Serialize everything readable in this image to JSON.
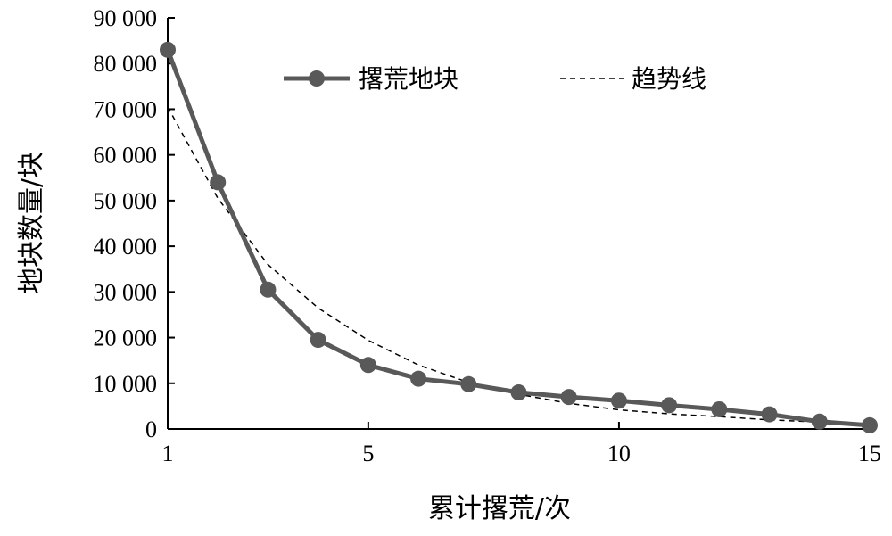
{
  "chart_data": {
    "type": "line",
    "xlabel": "累计撂荒/次",
    "ylabel": "地块数量/块",
    "xlim": [
      1,
      15
    ],
    "ylim": [
      0,
      90000
    ],
    "x_ticks": [
      1,
      5,
      10,
      15
    ],
    "x_tick_labels": [
      "1",
      "5",
      "10",
      "15"
    ],
    "y_ticks": [
      0,
      10000,
      20000,
      30000,
      40000,
      50000,
      60000,
      70000,
      80000,
      90000
    ],
    "y_tick_labels": [
      "0",
      "10 000",
      "20 000",
      "30 000",
      "40 000",
      "50 000",
      "60 000",
      "70 000",
      "80 000",
      "90 000"
    ],
    "grid": false,
    "legend_position": "top-center",
    "series": [
      {
        "name": "撂荒地块",
        "style": "solid-marker",
        "color": "#595959",
        "x": [
          1,
          2,
          3,
          4,
          5,
          6,
          7,
          8,
          9,
          10,
          11,
          12,
          13,
          14,
          15
        ],
        "values": [
          83000,
          54000,
          30500,
          19500,
          14000,
          11000,
          9800,
          8000,
          7000,
          6200,
          5200,
          4300,
          3200,
          1600,
          800
        ]
      },
      {
        "name": "趋势线",
        "style": "dashed",
        "color": "#000000",
        "x": [
          1,
          2,
          3,
          4,
          5,
          6,
          7,
          8,
          9,
          10,
          11,
          12,
          13,
          14,
          15
        ],
        "values": [
          70500,
          50500,
          36000,
          26500,
          19400,
          14000,
          10200,
          7600,
          5600,
          4200,
          3300,
          2700,
          2000,
          1500,
          1100
        ]
      }
    ]
  }
}
